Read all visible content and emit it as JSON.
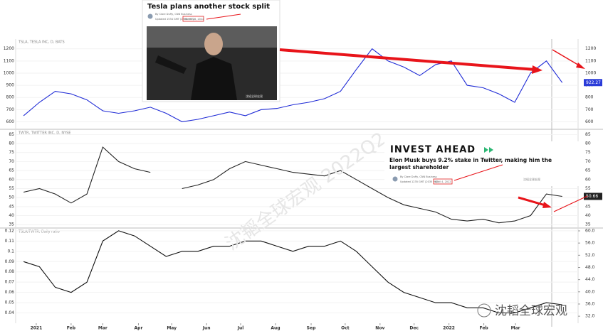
{
  "chart_data": [
    {
      "type": "line",
      "title": "TSLA, TESLA INC, D, BATS",
      "x": [
        0,
        2,
        4,
        6,
        8,
        10,
        12,
        14,
        16,
        18,
        20,
        22,
        24,
        26,
        28,
        30,
        32,
        34,
        36,
        38,
        40,
        42,
        44,
        46,
        48,
        50,
        52,
        54,
        56,
        58,
        60,
        62,
        64,
        66,
        68
      ],
      "series": [
        {
          "color": "#1f2bd6",
          "values": [
            650,
            760,
            850,
            830,
            780,
            690,
            670,
            690,
            720,
            670,
            600,
            620,
            650,
            680,
            650,
            700,
            710,
            740,
            760,
            790,
            850,
            1030,
            1200,
            1100,
            1050,
            980,
            1070,
            1100,
            900,
            880,
            830,
            760,
            1000,
            1100,
            922.27
          ]
        }
      ],
      "xlim": [
        -1,
        70
      ],
      "ylim": [
        550,
        1280
      ],
      "yticks": [
        600,
        700,
        800,
        900,
        1000,
        1100,
        1200
      ]
    },
    {
      "type": "line",
      "title": "TWTR, TWITTER INC, D, NYSE",
      "x": [
        0,
        2,
        4,
        6,
        8,
        10,
        12,
        14,
        16,
        18,
        20,
        22,
        24,
        26,
        28,
        30,
        32,
        34,
        36,
        38,
        40,
        42,
        44,
        46,
        48,
        50,
        52,
        54,
        56,
        58,
        60,
        62,
        64,
        66,
        68
      ],
      "series": [
        {
          "color": "#222222",
          "values": [
            53,
            55,
            52,
            47,
            52,
            78,
            70,
            66,
            64,
            null,
            55,
            57,
            60,
            66,
            70,
            68,
            66,
            64,
            63,
            62,
            65,
            60,
            55,
            50,
            46,
            44,
            42,
            38,
            37,
            38,
            36,
            37,
            40,
            52,
            50.66
          ]
        }
      ],
      "xlim": [
        -1,
        70
      ],
      "ylim": [
        33.5,
        87.5
      ],
      "yticks": [
        35,
        40,
        45,
        50,
        55,
        60,
        65,
        70,
        75,
        80,
        85
      ]
    },
    {
      "type": "line",
      "title": "TSLA/TWTR, Daily ratio",
      "x": [
        0,
        2,
        4,
        6,
        8,
        10,
        12,
        14,
        16,
        18,
        20,
        22,
        24,
        26,
        28,
        30,
        32,
        34,
        36,
        38,
        40,
        42,
        44,
        46,
        48,
        50,
        52,
        54,
        56,
        58,
        60,
        62,
        64,
        66,
        68
      ],
      "series": [
        {
          "color": "#111111",
          "values": [
            0.09,
            0.085,
            0.065,
            0.06,
            0.07,
            0.11,
            0.12,
            0.115,
            0.105,
            0.095,
            0.1,
            0.1,
            0.105,
            0.105,
            0.11,
            0.11,
            0.105,
            0.1,
            0.105,
            0.105,
            0.11,
            0.1,
            0.085,
            0.07,
            0.06,
            0.055,
            0.05,
            0.05,
            0.045,
            0.045,
            0.04,
            0.04,
            0.045,
            0.05,
            0.048
          ]
        }
      ],
      "xlim": [
        -1,
        70
      ],
      "ylim": [
        0.03,
        0.122
      ],
      "yticks": [
        0.04,
        0.05,
        0.06,
        0.07,
        0.08,
        0.09,
        0.1,
        0.11,
        0.12
      ],
      "y2lim": [
        29.7,
        60.7
      ],
      "y2ticks": [
        {
          "value": 32,
          "label": "32.0"
        },
        {
          "value": 36,
          "label": "36.0"
        },
        {
          "value": 40,
          "label": "40.0"
        },
        {
          "value": 44,
          "label": "44.0"
        },
        {
          "value": 48,
          "label": "48.0"
        },
        {
          "value": 52,
          "label": "52.0"
        },
        {
          "value": 56,
          "label": "56.0"
        },
        {
          "value": 60,
          "label": "60.0"
        }
      ],
      "xticks": [
        {
          "value": 1.6,
          "label": "2021"
        },
        {
          "value": 6,
          "label": "Feb"
        },
        {
          "value": 10,
          "label": "Mar"
        },
        {
          "value": 14.5,
          "label": "Apr"
        },
        {
          "value": 18.7,
          "label": "May"
        },
        {
          "value": 23.1,
          "label": "Jun"
        },
        {
          "value": 27.4,
          "label": "Jul"
        },
        {
          "value": 31.8,
          "label": "Aug"
        },
        {
          "value": 36.3,
          "label": "Sep"
        },
        {
          "value": 40.6,
          "label": "Oct"
        },
        {
          "value": 45,
          "label": "Nov"
        },
        {
          "value": 49.3,
          "label": "Dec"
        },
        {
          "value": 53.7,
          "label": "2022"
        },
        {
          "value": 58.1,
          "label": "Feb"
        },
        {
          "value": 62.1,
          "label": "Mar"
        }
      ]
    }
  ],
  "inset_tesla": {
    "title": "Tesla plans another stock split",
    "byline": "By Clare Duffy, CNN Business",
    "updated": "Updated 1534 GMT (2334 HKT)",
    "date": "March 28, 2022",
    "credit": "沈韬全球宏观"
  },
  "inset_twitter": {
    "brand": "INVEST AHEAD",
    "headline": "Elon Musk buys 9.2% stake in Twitter, making him the largest shareholder",
    "byline": "By Clare Duffy, CNN Business",
    "updated": "Updated 1235 GMT (2035 HKT)",
    "date": "April 4, 2022",
    "credit": "沈韬全球宏观"
  },
  "watermark": "沈韬全球宏观 2022Q2",
  "signature": "沈韬全球宏观"
}
